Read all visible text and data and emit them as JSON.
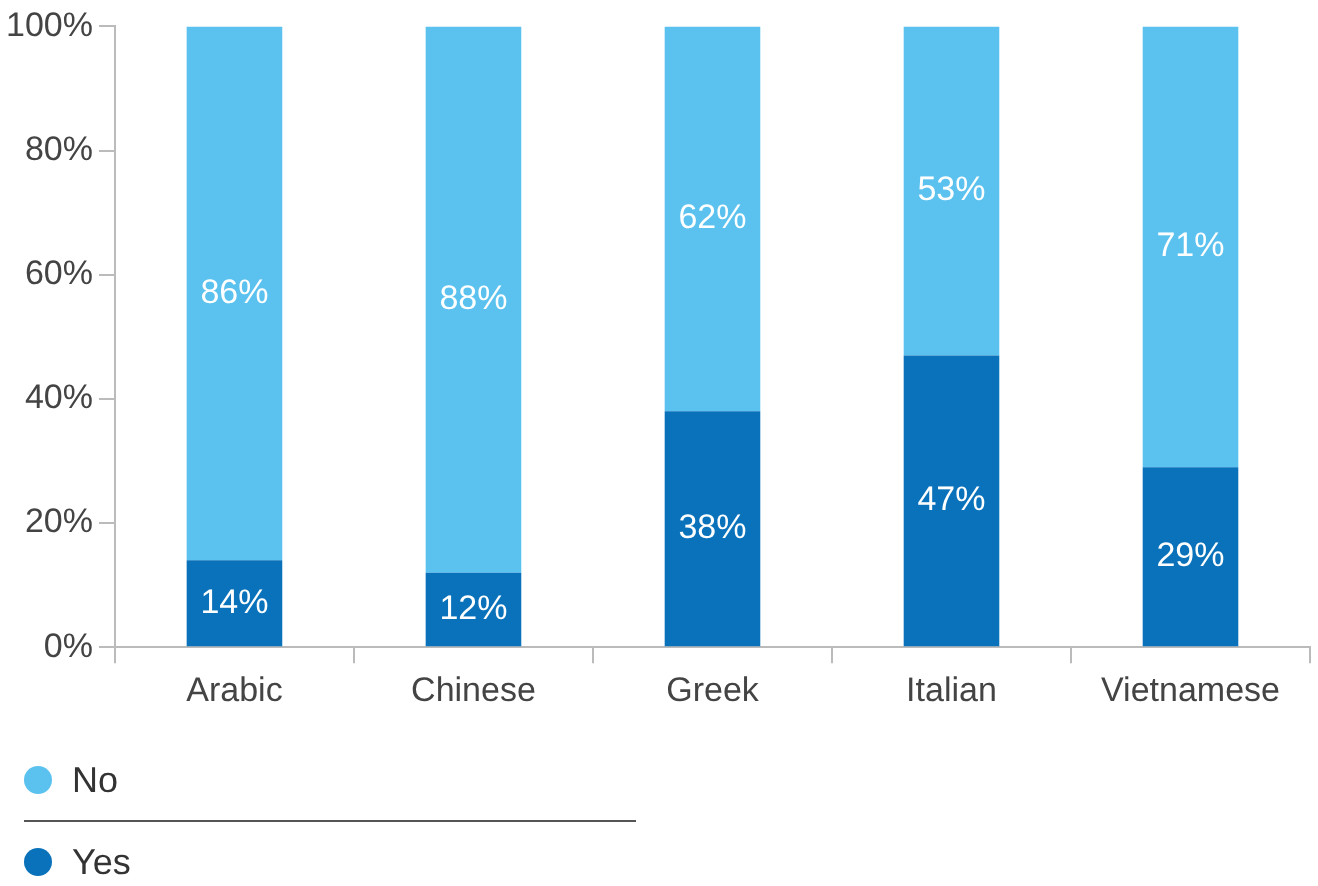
{
  "chart_data": {
    "type": "bar",
    "stacked": true,
    "categories": [
      "Arabic",
      "Chinese",
      "Greek",
      "Italian",
      "Vietnamese"
    ],
    "series": [
      {
        "name": "Yes",
        "color": "#0a72ba",
        "values": [
          14,
          12,
          38,
          47,
          29
        ],
        "value_labels": [
          "14%",
          "12%",
          "38%",
          "47%",
          "29%"
        ]
      },
      {
        "name": "No",
        "color": "#5bc2ef",
        "values": [
          86,
          88,
          62,
          53,
          71
        ],
        "value_labels": [
          "86%",
          "88%",
          "62%",
          "53%",
          "71%"
        ]
      }
    ],
    "ylim": [
      0,
      100
    ],
    "yticks": [
      {
        "value": 0,
        "label": "0%"
      },
      {
        "value": 20,
        "label": "20%"
      },
      {
        "value": 40,
        "label": "40%"
      },
      {
        "value": 60,
        "label": "60%"
      },
      {
        "value": 80,
        "label": "80%"
      },
      {
        "value": 100,
        "label": "100%"
      }
    ],
    "grid": false,
    "legend": "bottom left"
  }
}
